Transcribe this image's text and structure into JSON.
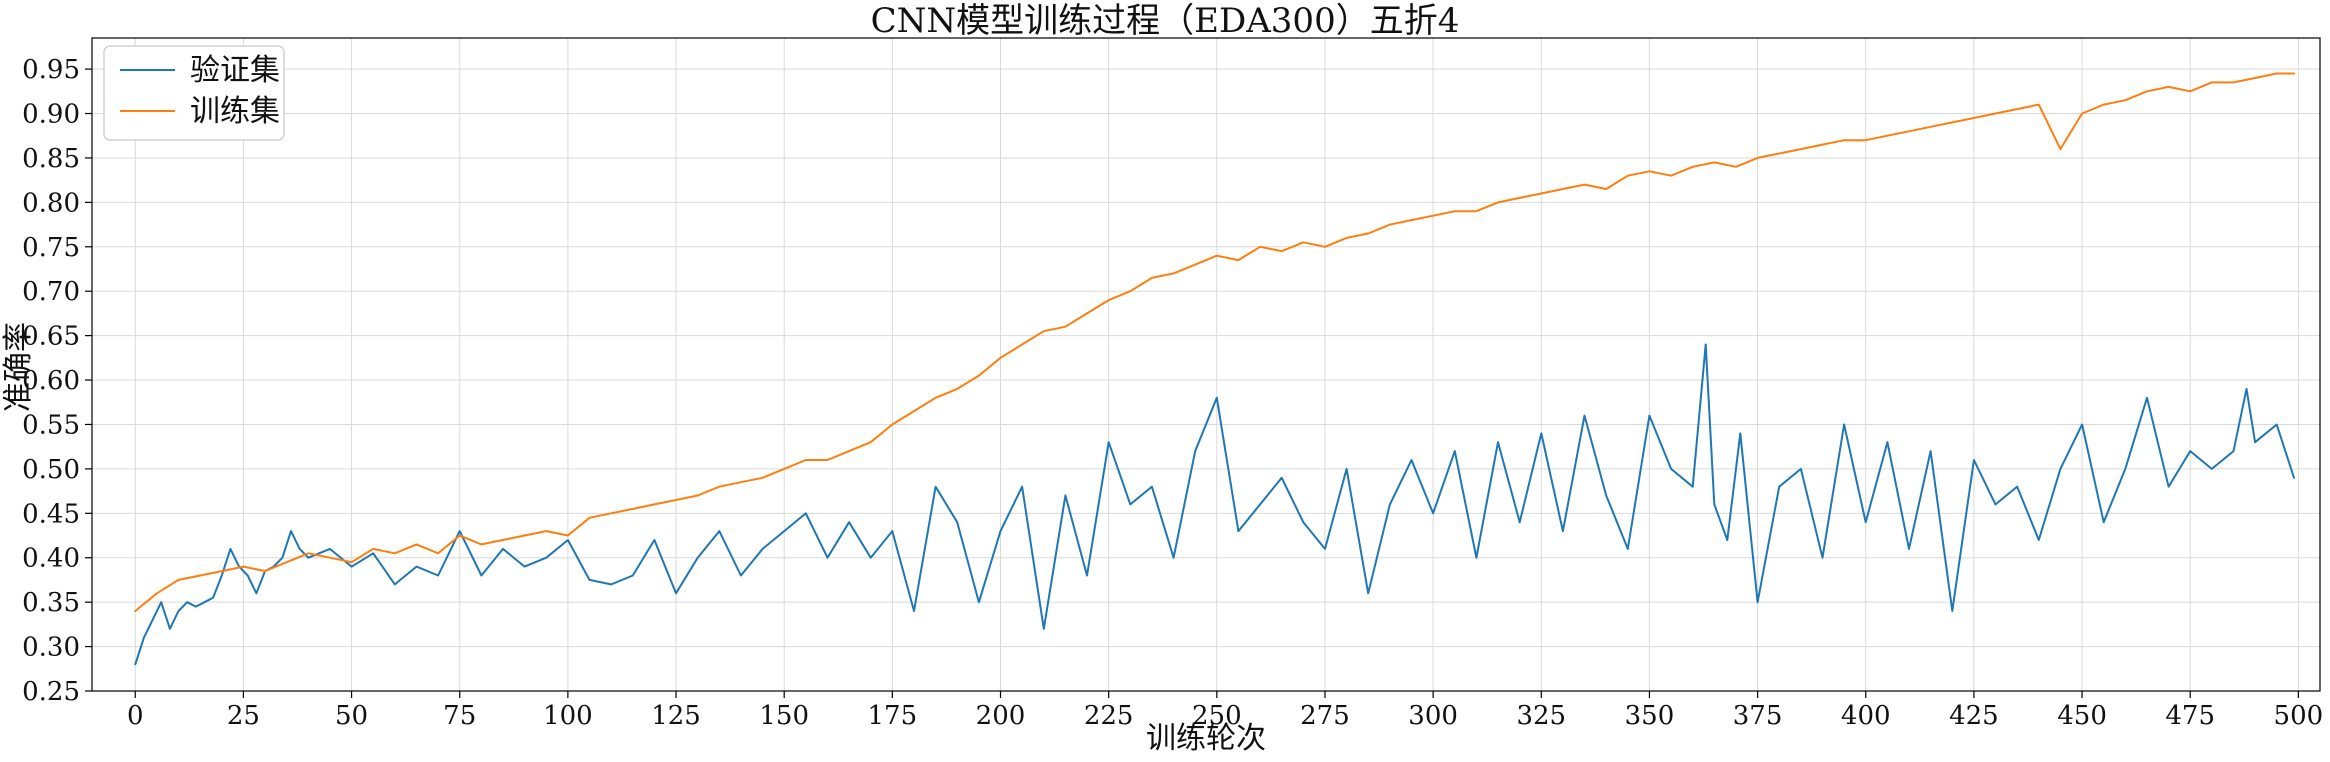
{
  "chart_data": {
    "type": "line",
    "title": "CNN模型训练过程（EDA300）五折4",
    "xlabel": "训练轮次",
    "ylabel": "准确率",
    "xlim": [
      -10,
      505
    ],
    "ylim": [
      0.25,
      0.985
    ],
    "xticks": [
      0,
      25,
      50,
      75,
      100,
      125,
      150,
      175,
      200,
      225,
      250,
      275,
      300,
      325,
      350,
      375,
      400,
      425,
      450,
      475,
      500
    ],
    "yticks": [
      0.25,
      0.3,
      0.35,
      0.4,
      0.45,
      0.5,
      0.55,
      0.6,
      0.65,
      0.7,
      0.75,
      0.8,
      0.85,
      0.9,
      0.95
    ],
    "xtick_labels": [
      "0",
      "25",
      "50",
      "75",
      "100",
      "125",
      "150",
      "175",
      "200",
      "225",
      "250",
      "275",
      "300",
      "325",
      "350",
      "375",
      "400",
      "425",
      "450",
      "475",
      "500"
    ],
    "ytick_labels": [
      "0.25",
      "0.30",
      "0.35",
      "0.40",
      "0.45",
      "0.50",
      "0.55",
      "0.60",
      "0.65",
      "0.70",
      "0.75",
      "0.80",
      "0.85",
      "0.90",
      "0.95"
    ],
    "grid": true,
    "legend_position": "top-left",
    "series": [
      {
        "name": "验证集",
        "color": "#1f77b4",
        "x": [
          0,
          2,
          4,
          6,
          8,
          10,
          12,
          14,
          16,
          18,
          20,
          22,
          24,
          26,
          28,
          30,
          32,
          34,
          36,
          38,
          40,
          45,
          50,
          55,
          60,
          65,
          70,
          75,
          80,
          85,
          90,
          95,
          100,
          105,
          110,
          115,
          120,
          125,
          130,
          135,
          140,
          145,
          150,
          155,
          160,
          165,
          170,
          175,
          180,
          185,
          190,
          195,
          200,
          205,
          210,
          215,
          220,
          225,
          230,
          235,
          240,
          245,
          250,
          255,
          260,
          265,
          270,
          275,
          280,
          285,
          290,
          295,
          300,
          305,
          310,
          315,
          320,
          325,
          330,
          335,
          340,
          345,
          350,
          355,
          360,
          363,
          365,
          368,
          371,
          375,
          380,
          385,
          390,
          395,
          400,
          405,
          410,
          415,
          420,
          425,
          430,
          435,
          440,
          445,
          450,
          455,
          460,
          465,
          470,
          475,
          480,
          485,
          488,
          490,
          495,
          499
        ],
        "values": [
          0.28,
          0.31,
          0.33,
          0.35,
          0.32,
          0.34,
          0.35,
          0.345,
          0.35,
          0.355,
          0.38,
          0.41,
          0.39,
          0.38,
          0.36,
          0.385,
          0.39,
          0.4,
          0.43,
          0.41,
          0.4,
          0.41,
          0.39,
          0.405,
          0.37,
          0.39,
          0.38,
          0.43,
          0.38,
          0.41,
          0.39,
          0.4,
          0.42,
          0.375,
          0.37,
          0.38,
          0.42,
          0.36,
          0.4,
          0.43,
          0.38,
          0.41,
          0.43,
          0.45,
          0.4,
          0.44,
          0.4,
          0.43,
          0.34,
          0.48,
          0.44,
          0.35,
          0.43,
          0.48,
          0.32,
          0.47,
          0.38,
          0.53,
          0.46,
          0.48,
          0.4,
          0.52,
          0.58,
          0.43,
          0.46,
          0.49,
          0.44,
          0.41,
          0.5,
          0.36,
          0.46,
          0.51,
          0.45,
          0.52,
          0.4,
          0.53,
          0.44,
          0.54,
          0.43,
          0.56,
          0.47,
          0.41,
          0.56,
          0.5,
          0.48,
          0.64,
          0.46,
          0.42,
          0.54,
          0.35,
          0.48,
          0.5,
          0.4,
          0.55,
          0.44,
          0.53,
          0.41,
          0.52,
          0.34,
          0.51,
          0.46,
          0.48,
          0.42,
          0.5,
          0.55,
          0.44,
          0.5,
          0.58,
          0.48,
          0.52,
          0.5,
          0.52,
          0.59,
          0.53,
          0.55,
          0.49
        ]
      },
      {
        "name": "训练集",
        "color": "#ff7f0e",
        "x": [
          0,
          5,
          10,
          15,
          20,
          25,
          30,
          35,
          40,
          45,
          50,
          55,
          60,
          65,
          70,
          75,
          80,
          85,
          90,
          95,
          100,
          105,
          110,
          115,
          120,
          125,
          130,
          135,
          140,
          145,
          150,
          155,
          160,
          165,
          170,
          175,
          180,
          185,
          190,
          195,
          200,
          205,
          210,
          215,
          220,
          225,
          230,
          235,
          240,
          245,
          250,
          255,
          260,
          265,
          270,
          275,
          280,
          285,
          290,
          295,
          300,
          305,
          310,
          315,
          320,
          325,
          330,
          335,
          340,
          345,
          350,
          355,
          360,
          365,
          370,
          375,
          380,
          385,
          390,
          395,
          400,
          405,
          410,
          415,
          420,
          425,
          430,
          435,
          440,
          445,
          450,
          455,
          460,
          465,
          470,
          475,
          480,
          485,
          490,
          495,
          499
        ],
        "values": [
          0.34,
          0.36,
          0.375,
          0.38,
          0.385,
          0.39,
          0.385,
          0.395,
          0.405,
          0.4,
          0.395,
          0.41,
          0.405,
          0.415,
          0.405,
          0.425,
          0.415,
          0.42,
          0.425,
          0.43,
          0.425,
          0.445,
          0.45,
          0.455,
          0.46,
          0.465,
          0.47,
          0.48,
          0.485,
          0.49,
          0.5,
          0.51,
          0.51,
          0.52,
          0.53,
          0.55,
          0.565,
          0.58,
          0.59,
          0.605,
          0.625,
          0.64,
          0.655,
          0.66,
          0.675,
          0.69,
          0.7,
          0.715,
          0.72,
          0.73,
          0.74,
          0.735,
          0.75,
          0.745,
          0.755,
          0.75,
          0.76,
          0.765,
          0.775,
          0.78,
          0.785,
          0.79,
          0.79,
          0.8,
          0.805,
          0.81,
          0.815,
          0.82,
          0.815,
          0.83,
          0.835,
          0.83,
          0.84,
          0.845,
          0.84,
          0.85,
          0.855,
          0.86,
          0.865,
          0.87,
          0.87,
          0.875,
          0.88,
          0.885,
          0.89,
          0.895,
          0.9,
          0.905,
          0.91,
          0.86,
          0.9,
          0.91,
          0.915,
          0.925,
          0.93,
          0.925,
          0.935,
          0.935,
          0.94,
          0.945,
          0.945
        ]
      }
    ]
  }
}
